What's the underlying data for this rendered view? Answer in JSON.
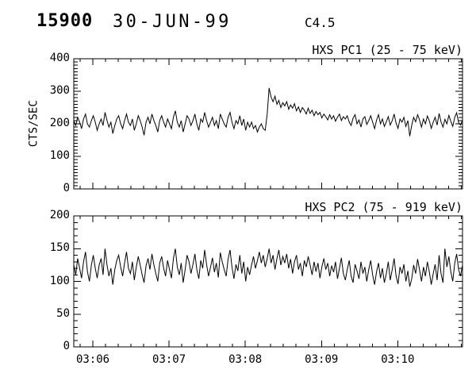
{
  "header": {
    "event_number": "15900",
    "date": "30-JUN-99",
    "flare_class": "C4.5"
  },
  "colors": {
    "foreground": "#000000",
    "background": "#ffffff"
  },
  "chart_data": [
    {
      "type": "line",
      "title": "HXS PC1 (25 - 75 keV)",
      "ylabel": "CTS/SEC",
      "ylim": [
        0,
        400
      ],
      "yticks": [
        0,
        100,
        200,
        300,
        400
      ],
      "y_minor_step": 10,
      "grid": false,
      "x_axis": {
        "span_seconds": 306,
        "major_tick_seconds": [
          15,
          75,
          135,
          195,
          255
        ],
        "minor_step_seconds": 10,
        "tick_labels": [
          "03:06",
          "03:07",
          "03:08",
          "03:09",
          "03:10"
        ],
        "show_labels": false
      },
      "values": [
        210,
        195,
        220,
        205,
        185,
        215,
        230,
        200,
        190,
        210,
        225,
        205,
        180,
        200,
        215,
        195,
        235,
        210,
        190,
        205,
        170,
        195,
        215,
        225,
        200,
        185,
        210,
        230,
        205,
        195,
        215,
        180,
        200,
        225,
        210,
        190,
        165,
        205,
        220,
        200,
        230,
        210,
        195,
        175,
        210,
        225,
        205,
        190,
        215,
        200,
        185,
        220,
        240,
        205,
        190,
        210,
        175,
        200,
        225,
        215,
        195,
        210,
        230,
        200,
        180,
        215,
        205,
        235,
        210,
        190,
        205,
        220,
        195,
        210,
        185,
        230,
        215,
        200,
        190,
        220,
        235,
        205,
        185,
        210,
        200,
        225,
        195,
        215,
        180,
        205,
        190,
        205,
        185,
        195,
        175,
        190,
        200,
        185,
        180,
        230,
        310,
        282,
        268,
        285,
        260,
        272,
        250,
        265,
        255,
        268,
        245,
        258,
        248,
        262,
        240,
        252,
        235,
        250,
        242,
        230,
        248,
        232,
        242,
        225,
        238,
        228,
        235,
        218,
        230,
        222,
        212,
        228,
        215,
        225,
        208,
        220,
        230,
        210,
        222,
        215,
        225,
        205,
        195,
        218,
        228,
        200,
        212,
        190,
        215,
        222,
        198,
        210,
        225,
        205,
        185,
        212,
        228,
        200,
        215,
        192,
        206,
        222,
        196,
        210,
        230,
        202,
        186,
        215,
        205,
        220,
        192,
        210,
        162,
        196,
        220,
        206,
        228,
        212,
        190,
        215,
        200,
        224,
        210,
        186,
        205,
        220,
        196,
        232,
        206,
        190,
        214,
        200,
        226,
        208,
        192,
        220,
        234,
        204,
        196,
        212
      ]
    },
    {
      "type": "line",
      "title": "HXS PC2 (75 - 919 keV)",
      "ylabel": "",
      "ylim": [
        0,
        200
      ],
      "yticks": [
        0,
        50,
        100,
        150,
        200
      ],
      "y_minor_step": 10,
      "grid": false,
      "x_axis": {
        "span_seconds": 306,
        "major_tick_seconds": [
          15,
          75,
          135,
          195,
          255
        ],
        "minor_step_seconds": 10,
        "tick_labels": [
          "03:06",
          "03:07",
          "03:08",
          "03:09",
          "03:10"
        ],
        "show_labels": true
      },
      "values": [
        125,
        110,
        135,
        120,
        105,
        130,
        145,
        115,
        100,
        125,
        140,
        120,
        105,
        125,
        135,
        110,
        150,
        125,
        108,
        120,
        95,
        118,
        132,
        140,
        122,
        108,
        128,
        145,
        120,
        112,
        130,
        102,
        122,
        138,
        125,
        110,
        98,
        124,
        135,
        118,
        142,
        125,
        112,
        100,
        128,
        138,
        120,
        108,
        132,
        118,
        105,
        135,
        150,
        122,
        110,
        128,
        98,
        118,
        140,
        130,
        112,
        126,
        142,
        118,
        104,
        132,
        120,
        148,
        126,
        108,
        122,
        136,
        114,
        128,
        106,
        144,
        130,
        118,
        108,
        134,
        148,
        122,
        104,
        126,
        116,
        140,
        112,
        130,
        100,
        122,
        110,
        125,
        138,
        120,
        132,
        145,
        128,
        140,
        122,
        135,
        150,
        128,
        140,
        118,
        135,
        148,
        125,
        138,
        128,
        142,
        120,
        134,
        112,
        130,
        140,
        118,
        128,
        108,
        132,
        122,
        138,
        125,
        110,
        130,
        115,
        128,
        105,
        122,
        135,
        118,
        128,
        108,
        124,
        114,
        130,
        104,
        120,
        136,
        112,
        102,
        118,
        132,
        108,
        98,
        126,
        116,
        104,
        130,
        112,
        122,
        100,
        118,
        132,
        110,
        95,
        115,
        128,
        105,
        120,
        98,
        112,
        130,
        102,
        118,
        135,
        108,
        96,
        122,
        112,
        126,
        100,
        116,
        92,
        104,
        125,
        112,
        134,
        118,
        100,
        122,
        108,
        130,
        115,
        95,
        112,
        126,
        102,
        140,
        112,
        98,
        150,
        122,
        138,
        115,
        100,
        128,
        142,
        118,
        108,
        125
      ]
    }
  ]
}
